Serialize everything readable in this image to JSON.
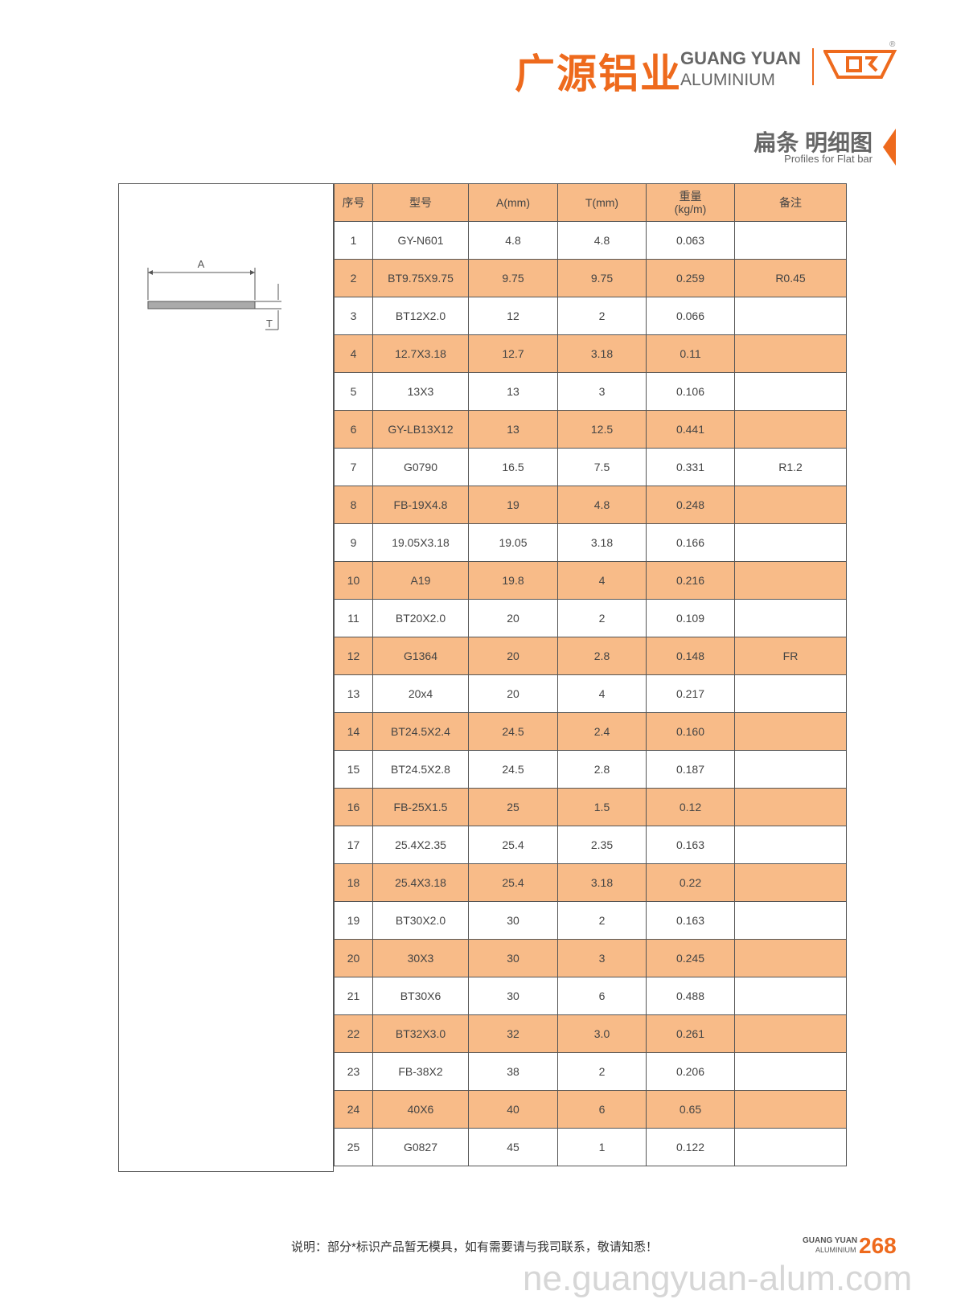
{
  "header": {
    "logo_cn": "广源铝业",
    "logo_en_1": "GUANG YUAN",
    "logo_en_2": "ALUMINIUM",
    "registered": "®"
  },
  "section": {
    "title": "扁条 明细图",
    "subtitle": "Profiles for Flat bar"
  },
  "diagram": {
    "label_a": "A",
    "label_t": "T"
  },
  "table": {
    "headers": [
      "序号",
      "型号",
      "A(mm)",
      "T(mm)",
      [
        "重量",
        "(kg/m)"
      ],
      "备注"
    ],
    "rows": [
      [
        "1",
        "GY-N601",
        "4.8",
        "4.8",
        "0.063",
        ""
      ],
      [
        "2",
        "BT9.75X9.75",
        "9.75",
        "9.75",
        "0.259",
        "R0.45"
      ],
      [
        "3",
        "BT12X2.0",
        "12",
        "2",
        "0.066",
        ""
      ],
      [
        "4",
        "12.7X3.18",
        "12.7",
        "3.18",
        "0.11",
        ""
      ],
      [
        "5",
        "13X3",
        "13",
        "3",
        "0.106",
        ""
      ],
      [
        "6",
        "GY-LB13X12",
        "13",
        "12.5",
        "0.441",
        ""
      ],
      [
        "7",
        "G0790",
        "16.5",
        "7.5",
        "0.331",
        "R1.2"
      ],
      [
        "8",
        "FB-19X4.8",
        "19",
        "4.8",
        "0.248",
        ""
      ],
      [
        "9",
        "19.05X3.18",
        "19.05",
        "3.18",
        "0.166",
        ""
      ],
      [
        "10",
        "A19",
        "19.8",
        "4",
        "0.216",
        ""
      ],
      [
        "11",
        "BT20X2.0",
        "20",
        "2",
        "0.109",
        ""
      ],
      [
        "12",
        "G1364",
        "20",
        "2.8",
        "0.148",
        "FR"
      ],
      [
        "13",
        "20x4",
        "20",
        "4",
        "0.217",
        ""
      ],
      [
        "14",
        "BT24.5X2.4",
        "24.5",
        "2.4",
        "0.160",
        ""
      ],
      [
        "15",
        "BT24.5X2.8",
        "24.5",
        "2.8",
        "0.187",
        ""
      ],
      [
        "16",
        "FB-25X1.5",
        "25",
        "1.5",
        "0.12",
        ""
      ],
      [
        "17",
        "25.4X2.35",
        "25.4",
        "2.35",
        "0.163",
        ""
      ],
      [
        "18",
        "25.4X3.18",
        "25.4",
        "3.18",
        "0.22",
        ""
      ],
      [
        "19",
        "BT30X2.0",
        "30",
        "2",
        "0.163",
        ""
      ],
      [
        "20",
        "30X3",
        "30",
        "3",
        "0.245",
        ""
      ],
      [
        "21",
        "BT30X6",
        "30",
        "6",
        "0.488",
        ""
      ],
      [
        "22",
        "BT32X3.0",
        "32",
        "3.0",
        "0.261",
        ""
      ],
      [
        "23",
        "FB-38X2",
        "38",
        "2",
        "0.206",
        ""
      ],
      [
        "24",
        "40X6",
        "40",
        "6",
        "0.65",
        ""
      ],
      [
        "25",
        "G0827",
        "45",
        "1",
        "0.122",
        ""
      ]
    ]
  },
  "footer": {
    "note": "说明：部分*标识产品暂无模具，如有需要请与我司联系，敬请知悉！",
    "brand_1": "GUANG YUAN",
    "brand_2": "ALUMINIUM",
    "page": "268",
    "watermark": "ne.guangyuan-alum.com"
  }
}
